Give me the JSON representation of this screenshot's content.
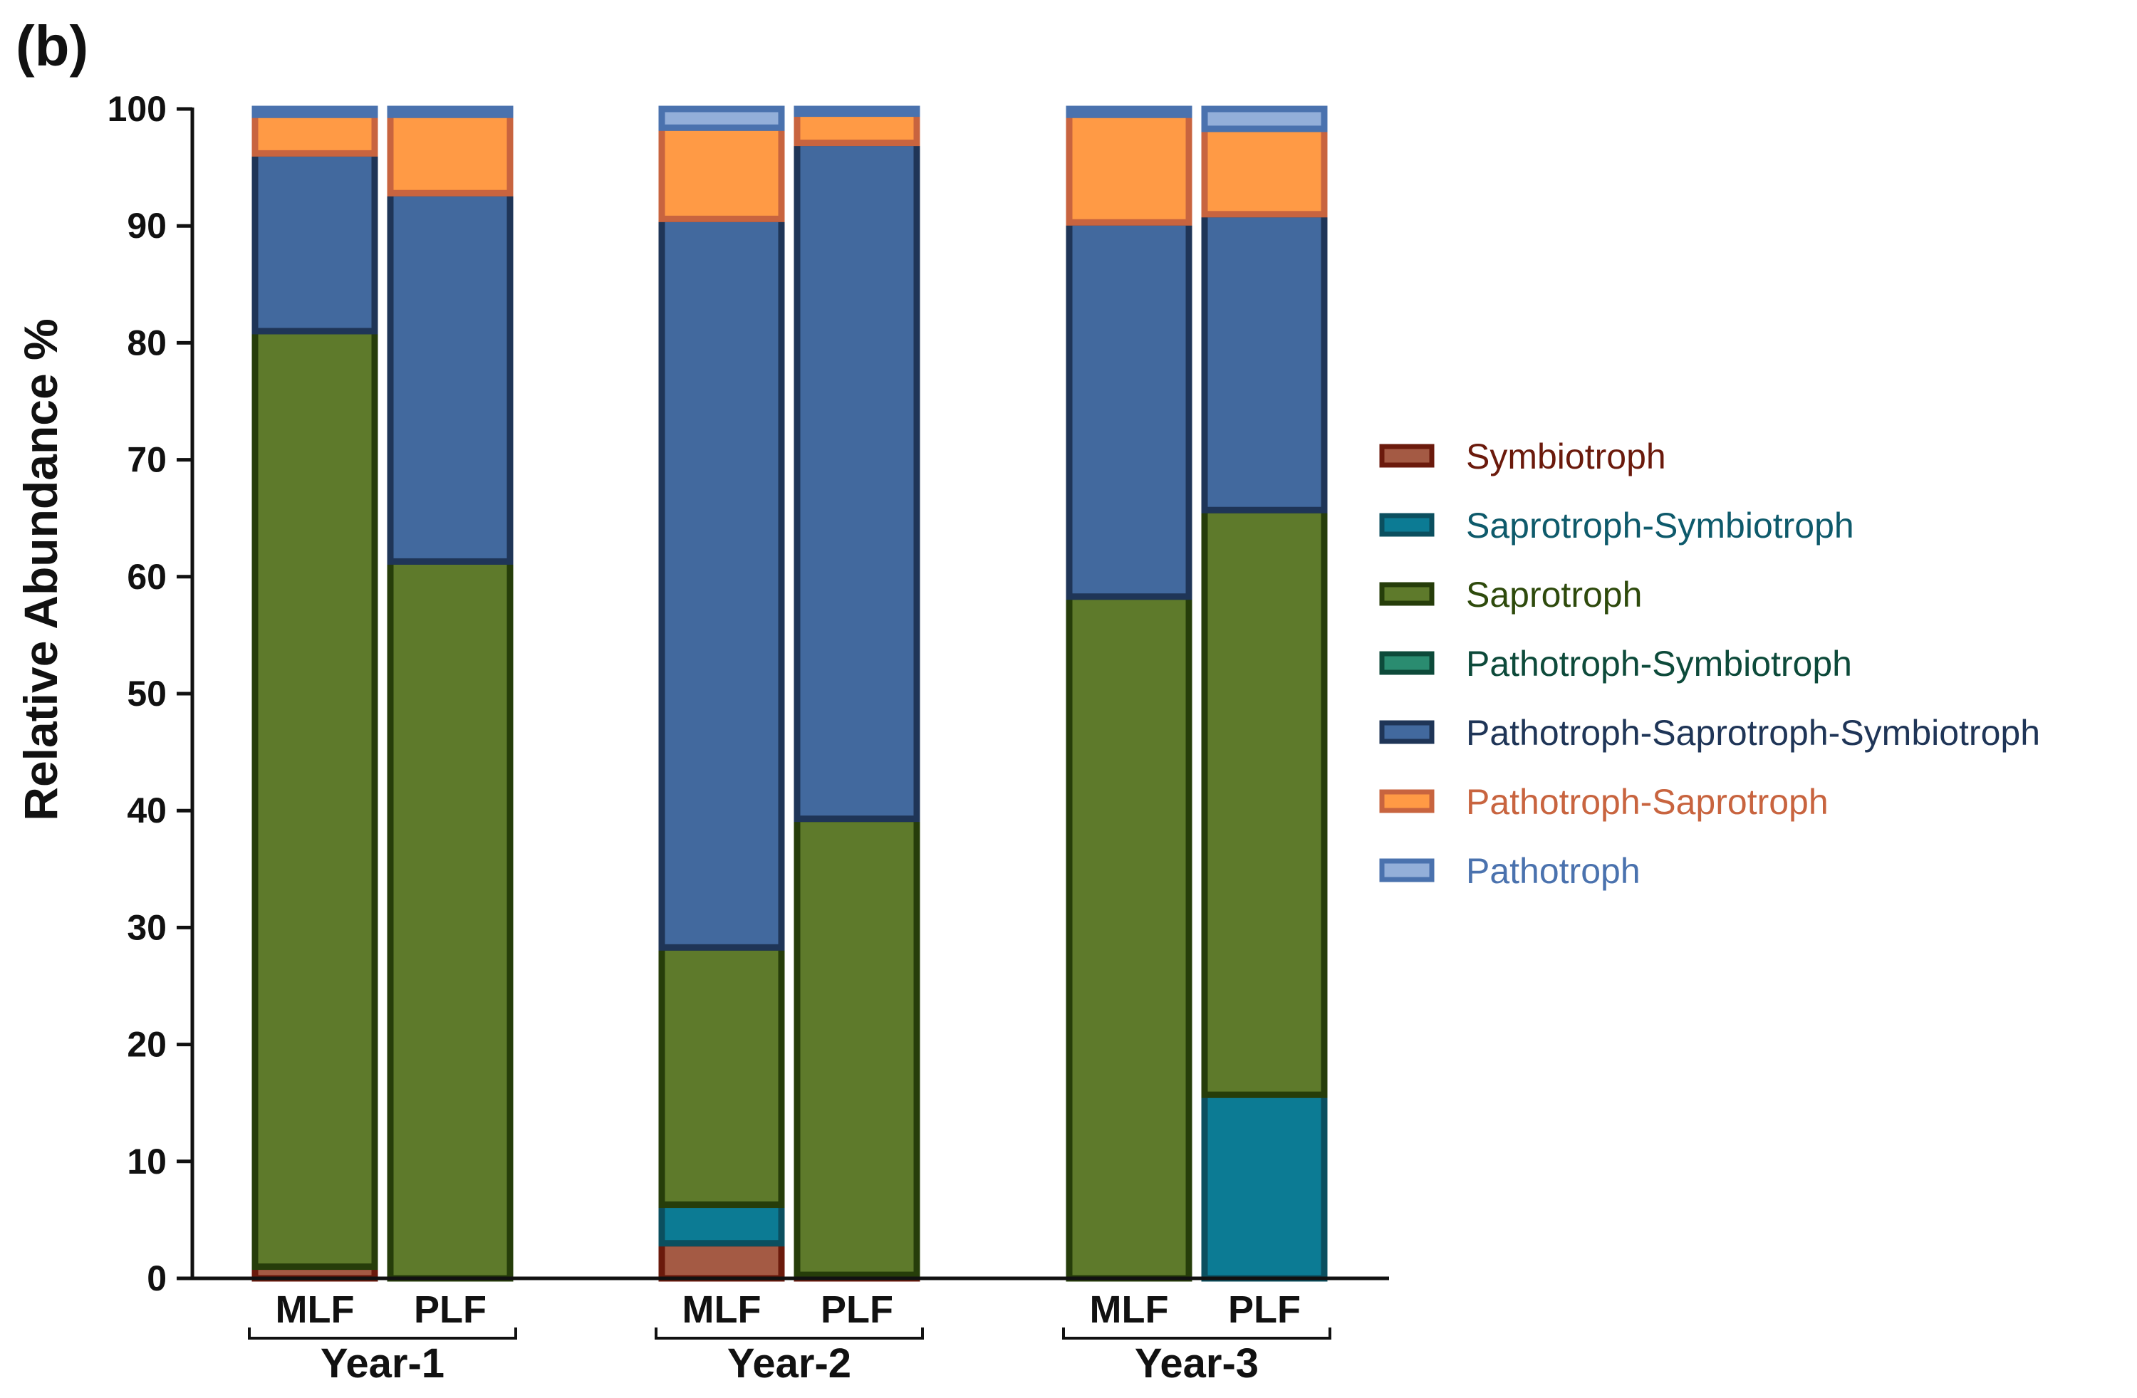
{
  "panel_label": "(b)",
  "chart_data": {
    "type": "bar",
    "stacked": true,
    "title": "",
    "xlabel": "",
    "ylabel": "Relative Abundance  %",
    "ylim": [
      0,
      100
    ],
    "yticks": [
      0,
      10,
      20,
      30,
      40,
      50,
      60,
      70,
      80,
      90,
      100
    ],
    "legend_position": "right",
    "groups": [
      {
        "label": "Year-1",
        "categories": [
          "MLF",
          "PLF"
        ]
      },
      {
        "label": "Year-2",
        "categories": [
          "MLF",
          "PLF"
        ]
      },
      {
        "label": "Year-3",
        "categories": [
          "MLF",
          "PLF"
        ]
      }
    ],
    "categories": [
      "MLF",
      "PLF",
      "MLF",
      "PLF",
      "MLF",
      "PLF"
    ],
    "series": [
      {
        "name": "Symbiotroph",
        "fill": "#A45A44",
        "stroke": "#6B1A0C",
        "text_color": "#6B1A0C",
        "values": [
          1.0,
          0.0,
          3.0,
          0.3,
          0.0,
          0.0
        ]
      },
      {
        "name": "Saprotroph-Symbiotroph",
        "fill": "#0C7B94",
        "stroke": "#0B4F5F",
        "text_color": "#0E5A6B",
        "values": [
          0.0,
          0.0,
          3.3,
          0.0,
          0.0,
          15.7
        ]
      },
      {
        "name": "Saprotroph",
        "fill": "#5E7A2B",
        "stroke": "#263D0A",
        "text_color": "#2E4A0C",
        "values": [
          80.0,
          61.3,
          22.0,
          39.0,
          58.3,
          50.0
        ]
      },
      {
        "name": "Pathotroph-Symbiotroph",
        "fill": "#2A8C70",
        "stroke": "#0D4A3A",
        "text_color": "#0D4A3A",
        "values": [
          0.0,
          0.0,
          0.0,
          0.0,
          0.0,
          0.0
        ]
      },
      {
        "name": "Pathotroph-Saprotroph-Symbiotroph",
        "fill": "#42699E",
        "stroke": "#1F3557",
        "text_color": "#1F3557",
        "values": [
          15.2,
          31.5,
          62.3,
          57.8,
          32.0,
          25.3
        ]
      },
      {
        "name": "Pathotroph-Saprotroph",
        "fill": "#FF9A45",
        "stroke": "#C8643F",
        "text_color": "#C8643F",
        "values": [
          3.3,
          6.7,
          7.8,
          2.5,
          9.2,
          7.3
        ]
      },
      {
        "name": "Pathotroph",
        "fill": "#93AFD9",
        "stroke": "#4A72AE",
        "text_color": "#4A72AE",
        "values": [
          0.5,
          0.5,
          1.6,
          0.4,
          0.5,
          1.7
        ]
      }
    ]
  }
}
